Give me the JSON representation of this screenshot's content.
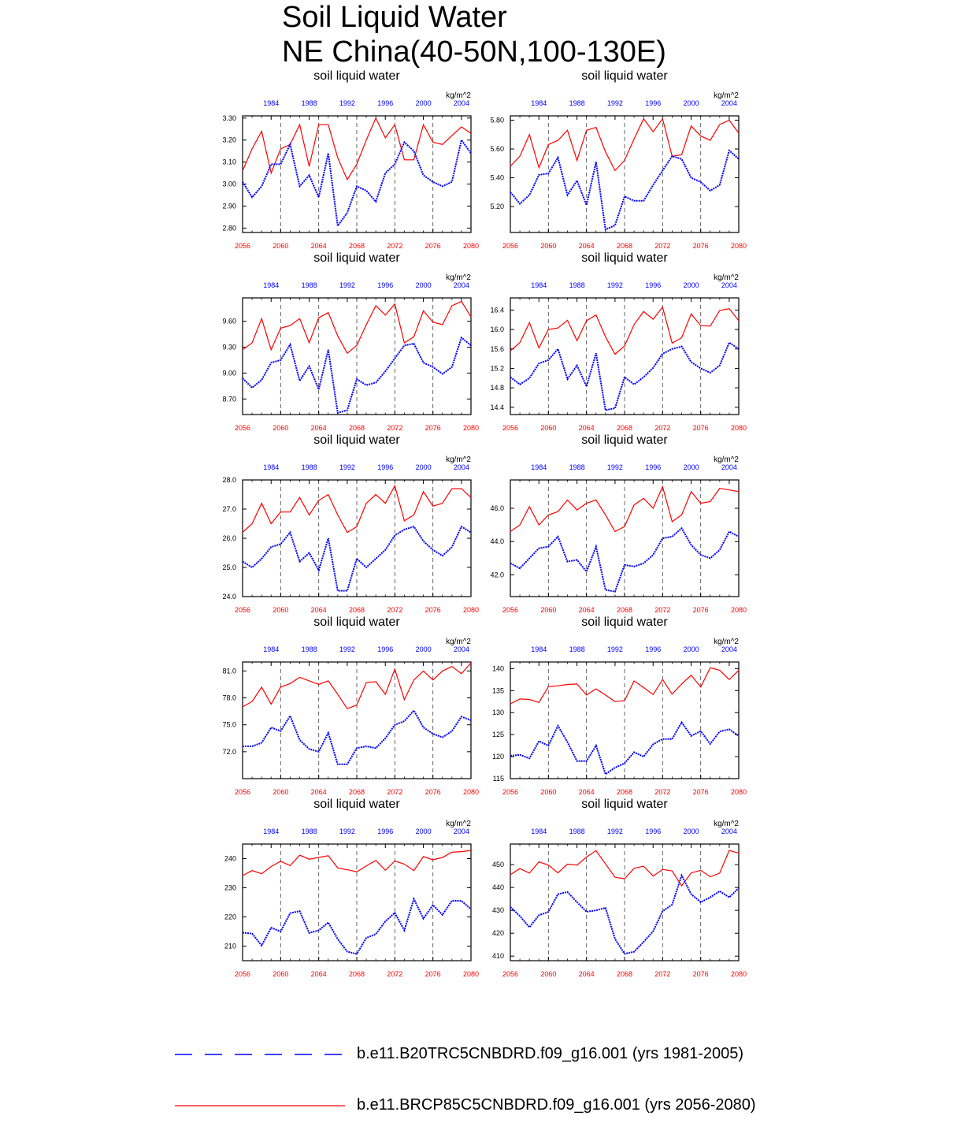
{
  "title_line1": "Soil Liquid Water",
  "title_line2": "NE China(40-50N,100-130E)",
  "legend": {
    "hist_label": "b.e11.B20TRC5CNBDRD.f09_g16.001 (yrs 1981-2005)",
    "hist_color": "#0000ff",
    "fut_label": "b.e11.BRCP85C5CNBDRD.f09_g16.001 (yrs 2056-2080)",
    "fut_color": "#ff0000"
  },
  "chart_data": [
    {
      "type": "line",
      "title": "soil liquid water",
      "units": "kg/m^2",
      "ylim": [
        2.78,
        3.31
      ],
      "yticks": [
        "2.80",
        "2.90",
        "3.00",
        "3.10",
        "3.20",
        "3.30"
      ],
      "x_bottom_ticks": [
        "2056",
        "2060",
        "2064",
        "2068",
        "2072",
        "2076",
        "2080"
      ],
      "x_top_ticks": [
        "1984",
        "1988",
        "1992",
        "1996",
        "2000",
        "2004"
      ],
      "series": [
        {
          "name": "b.e11.BRCP85C5CNBDRD.f09_g16.001 (yrs 2056-2080)",
          "x_years": "2056-2080",
          "values": [
            3.06,
            3.16,
            3.24,
            3.05,
            3.16,
            3.18,
            3.27,
            3.08,
            3.27,
            3.27,
            3.12,
            3.02,
            3.09,
            3.2,
            3.3,
            3.21,
            3.27,
            3.11,
            3.11,
            3.27,
            3.19,
            3.18,
            3.22,
            3.26,
            3.23
          ]
        },
        {
          "name": "b.e11.B20TRC5CNBDRD.f09_g16.001 (yrs 1981-2005)",
          "x_years": "1981-2005",
          "values": [
            3.01,
            2.94,
            2.99,
            3.09,
            3.09,
            3.18,
            2.99,
            3.04,
            2.94,
            3.14,
            2.81,
            2.87,
            2.99,
            2.97,
            2.92,
            3.05,
            3.09,
            3.19,
            3.15,
            3.04,
            3.01,
            2.99,
            3.01,
            3.2,
            3.14
          ]
        }
      ]
    },
    {
      "type": "line",
      "title": "soil liquid water",
      "units": "kg/m^2",
      "ylim": [
        5.02,
        5.83
      ],
      "yticks": [
        "5.20",
        "5.40",
        "5.60",
        "5.80"
      ],
      "x_bottom_ticks": [
        "2056",
        "2060",
        "2064",
        "2068",
        "2072",
        "2076",
        "2080"
      ],
      "x_top_ticks": [
        "1984",
        "1988",
        "1992",
        "1996",
        "2000",
        "2004"
      ],
      "series": [
        {
          "name": "b.e11.BRCP85C5CNBDRD.f09_g16.001 (yrs 2056-2080)",
          "x_years": "2056-2080",
          "values": [
            5.48,
            5.55,
            5.7,
            5.47,
            5.63,
            5.66,
            5.73,
            5.52,
            5.73,
            5.75,
            5.58,
            5.45,
            5.52,
            5.67,
            5.81,
            5.72,
            5.81,
            5.55,
            5.56,
            5.76,
            5.69,
            5.66,
            5.77,
            5.8,
            5.71
          ]
        },
        {
          "name": "b.e11.B20TRC5CNBDRD.f09_g16.001 (yrs 1981-2005)",
          "x_years": "1981-2005",
          "values": [
            5.3,
            5.22,
            5.28,
            5.42,
            5.43,
            5.54,
            5.28,
            5.38,
            5.21,
            5.51,
            5.04,
            5.07,
            5.27,
            5.24,
            5.24,
            5.35,
            5.45,
            5.55,
            5.53,
            5.4,
            5.37,
            5.31,
            5.35,
            5.59,
            5.53
          ]
        }
      ]
    },
    {
      "type": "line",
      "title": "soil liquid water",
      "units": "kg/m^2",
      "ylim": [
        8.52,
        9.87
      ],
      "yticks": [
        "8.70",
        "9.00",
        "9.30",
        "9.60"
      ],
      "x_bottom_ticks": [
        "2056",
        "2060",
        "2064",
        "2068",
        "2072",
        "2076",
        "2080"
      ],
      "x_top_ticks": [
        "1984",
        "1988",
        "1992",
        "1996",
        "2000",
        "2004"
      ],
      "series": [
        {
          "name": "b.e11.BRCP85C5CNBDRD.f09_g16.001 (yrs 2056-2080)",
          "x_years": "2056-2080",
          "values": [
            9.27,
            9.35,
            9.63,
            9.27,
            9.52,
            9.55,
            9.63,
            9.35,
            9.64,
            9.7,
            9.43,
            9.23,
            9.32,
            9.56,
            9.78,
            9.67,
            9.8,
            9.35,
            9.42,
            9.72,
            9.59,
            9.56,
            9.78,
            9.83,
            9.65
          ]
        },
        {
          "name": "b.e11.B20TRC5CNBDRD.f09_g16.001 (yrs 1981-2005)",
          "x_years": "1981-2005",
          "values": [
            8.94,
            8.83,
            8.92,
            9.12,
            9.15,
            9.33,
            8.91,
            9.08,
            8.81,
            9.27,
            8.54,
            8.57,
            8.93,
            8.86,
            8.89,
            9.02,
            9.17,
            9.32,
            9.34,
            9.12,
            9.07,
            8.99,
            9.07,
            9.41,
            9.32
          ]
        }
      ]
    },
    {
      "type": "line",
      "title": "soil liquid water",
      "units": "kg/m^2",
      "ylim": [
        14.25,
        16.65
      ],
      "yticks": [
        "14.4",
        "14.8",
        "15.2",
        "15.6",
        "16.0",
        "16.4"
      ],
      "x_bottom_ticks": [
        "2056",
        "2060",
        "2064",
        "2068",
        "2072",
        "2076",
        "2080"
      ],
      "x_top_ticks": [
        "1984",
        "1988",
        "1992",
        "1996",
        "2000",
        "2004"
      ],
      "series": [
        {
          "name": "b.e11.BRCP85C5CNBDRD.f09_g16.001 (yrs 2056-2080)",
          "x_years": "2056-2080",
          "values": [
            15.56,
            15.73,
            16.14,
            15.62,
            16.0,
            16.03,
            16.19,
            15.77,
            16.18,
            16.3,
            15.85,
            15.49,
            15.66,
            16.1,
            16.37,
            16.21,
            16.46,
            15.72,
            15.83,
            16.32,
            16.08,
            16.07,
            16.39,
            16.43,
            16.18
          ]
        },
        {
          "name": "b.e11.B20TRC5CNBDRD.f09_g16.001 (yrs 1981-2005)",
          "x_years": "1981-2005",
          "values": [
            15.02,
            14.87,
            15.0,
            15.3,
            15.37,
            15.6,
            14.98,
            15.26,
            14.83,
            15.51,
            14.34,
            14.38,
            15.02,
            14.87,
            15.02,
            15.21,
            15.5,
            15.6,
            15.65,
            15.33,
            15.2,
            15.11,
            15.26,
            15.73,
            15.6
          ]
        }
      ]
    },
    {
      "type": "line",
      "title": "soil liquid water",
      "units": "kg/m^2",
      "ylim": [
        24.0,
        28.0
      ],
      "yticks": [
        "24.0",
        "25.0",
        "26.0",
        "27.0",
        "28.0"
      ],
      "x_bottom_ticks": [
        "2056",
        "2060",
        "2064",
        "2068",
        "2072",
        "2076",
        "2080"
      ],
      "x_top_ticks": [
        "1984",
        "1988",
        "1992",
        "1996",
        "2000",
        "2004"
      ],
      "series": [
        {
          "name": "b.e11.BRCP85C5CNBDRD.f09_g16.001 (yrs 2056-2080)",
          "x_years": "2056-2080",
          "values": [
            26.2,
            26.5,
            27.2,
            26.5,
            26.9,
            26.9,
            27.4,
            26.8,
            27.3,
            27.5,
            26.8,
            26.2,
            26.4,
            27.2,
            27.5,
            27.2,
            27.8,
            26.6,
            26.8,
            27.6,
            27.1,
            27.2,
            27.7,
            27.7,
            27.4
          ]
        },
        {
          "name": "b.e11.B20TRC5CNBDRD.f09_g16.001 (yrs 1981-2005)",
          "x_years": "1981-2005",
          "values": [
            25.2,
            25.0,
            25.3,
            25.7,
            25.8,
            26.2,
            25.2,
            25.5,
            24.9,
            26.0,
            24.2,
            24.2,
            25.3,
            25.0,
            25.3,
            25.6,
            26.1,
            26.3,
            26.4,
            25.9,
            25.6,
            25.4,
            25.7,
            26.4,
            26.2
          ]
        }
      ]
    },
    {
      "type": "line",
      "title": "soil liquid water",
      "units": "kg/m^2",
      "ylim": [
        40.7,
        47.7
      ],
      "yticks": [
        "42.0",
        "44.0",
        "46.0"
      ],
      "x_bottom_ticks": [
        "2056",
        "2060",
        "2064",
        "2068",
        "2072",
        "2076",
        "2080"
      ],
      "x_top_ticks": [
        "1984",
        "1988",
        "1992",
        "1996",
        "2000",
        "2004"
      ],
      "series": [
        {
          "name": "b.e11.BRCP85C5CNBDRD.f09_g16.001 (yrs 2056-2080)",
          "x_years": "2056-2080",
          "values": [
            44.6,
            45.0,
            46.1,
            45.0,
            45.6,
            45.8,
            46.5,
            45.9,
            46.3,
            46.5,
            45.6,
            44.6,
            44.9,
            46.2,
            46.6,
            46.0,
            47.3,
            45.2,
            45.6,
            47.0,
            46.3,
            46.4,
            47.2,
            47.1,
            47.0
          ]
        },
        {
          "name": "b.e11.B20TRC5CNBDRD.f09_g16.001 (yrs 1981-2005)",
          "x_years": "1981-2005",
          "values": [
            42.7,
            42.4,
            43.0,
            43.6,
            43.7,
            44.3,
            42.8,
            42.9,
            42.2,
            43.7,
            41.1,
            41.0,
            42.6,
            42.5,
            42.7,
            43.2,
            44.2,
            44.3,
            44.8,
            43.8,
            43.2,
            43.0,
            43.5,
            44.6,
            44.3
          ]
        }
      ]
    },
    {
      "type": "line",
      "title": "soil liquid water",
      "units": "kg/m^2",
      "ylim": [
        69.0,
        82.0
      ],
      "yticks": [
        "72.0",
        "75.0",
        "78.0",
        "81.0"
      ],
      "x_bottom_ticks": [
        "2056",
        "2060",
        "2064",
        "2068",
        "2072",
        "2076",
        "2080"
      ],
      "x_top_ticks": [
        "1984",
        "1988",
        "1992",
        "1996",
        "2000",
        "2004"
      ],
      "series": [
        {
          "name": "b.e11.BRCP85C5CNBDRD.f09_g16.001 (yrs 2056-2080)",
          "x_years": "2056-2080",
          "values": [
            77.0,
            77.6,
            79.2,
            77.3,
            79.2,
            79.6,
            80.3,
            79.9,
            79.5,
            79.9,
            78.4,
            76.8,
            77.2,
            79.7,
            79.8,
            78.4,
            81.2,
            77.8,
            80.0,
            81.0,
            80.0,
            81.0,
            81.5,
            80.7,
            81.9
          ]
        },
        {
          "name": "b.e11.B20TRC5CNBDRD.f09_g16.001 (yrs 1981-2005)",
          "x_years": "1981-2005",
          "values": [
            72.6,
            72.6,
            73.0,
            74.7,
            74.3,
            76.0,
            73.3,
            72.3,
            72.0,
            74.1,
            70.6,
            70.6,
            72.4,
            72.6,
            72.4,
            73.5,
            75.0,
            75.4,
            76.6,
            74.7,
            74.0,
            73.6,
            74.3,
            75.9,
            75.5
          ]
        }
      ]
    },
    {
      "type": "line",
      "title": "soil liquid water",
      "units": "kg/m^2",
      "ylim": [
        115,
        141.5
      ],
      "yticks": [
        "115",
        "120",
        "125",
        "130",
        "135",
        "140"
      ],
      "x_bottom_ticks": [
        "2056",
        "2060",
        "2064",
        "2068",
        "2072",
        "2076",
        "2080"
      ],
      "x_top_ticks": [
        "1984",
        "1988",
        "1992",
        "1996",
        "2000",
        "2004"
      ],
      "series": [
        {
          "name": "b.e11.BRCP85C5CNBDRD.f09_g16.001 (yrs 2056-2080)",
          "x_years": "2056-2080",
          "values": [
            132.0,
            133.1,
            133.0,
            132.3,
            135.9,
            136.1,
            136.4,
            136.5,
            134.0,
            135.4,
            134.0,
            132.5,
            132.7,
            137.2,
            135.7,
            134.1,
            137.5,
            134.2,
            136.5,
            138.5,
            135.8,
            140.2,
            139.6,
            137.5,
            139.6
          ]
        },
        {
          "name": "b.e11.B20TRC5CNBDRD.f09_g16.001 (yrs 1981-2005)",
          "x_years": "1981-2005",
          "values": [
            120.2,
            120.4,
            119.6,
            123.5,
            122.5,
            127.0,
            123.3,
            119.0,
            119.0,
            122.5,
            116.0,
            117.5,
            118.5,
            121.0,
            120.0,
            122.8,
            124.0,
            124.0,
            127.8,
            124.7,
            125.8,
            122.9,
            125.7,
            126.2,
            124.7
          ]
        }
      ]
    },
    {
      "type": "line",
      "title": "soil liquid water",
      "units": "kg/m^2",
      "ylim": [
        205,
        245
      ],
      "yticks": [
        "210",
        "220",
        "230",
        "240"
      ],
      "x_bottom_ticks": [
        "2056",
        "2060",
        "2064",
        "2068",
        "2072",
        "2076",
        "2080"
      ],
      "x_top_ticks": [
        "1984",
        "1988",
        "1992",
        "1996",
        "2000",
        "2004"
      ],
      "series": [
        {
          "name": "b.e11.BRCP85C5CNBDRD.f09_g16.001 (yrs 2056-2080)",
          "x_years": "2056-2080",
          "values": [
            234.2,
            235.9,
            234.8,
            237.3,
            239.1,
            237.6,
            241.2,
            239.8,
            240.4,
            241.0,
            236.8,
            236.2,
            235.5,
            237.5,
            239.4,
            236.0,
            239.2,
            238.1,
            235.9,
            240.7,
            239.6,
            240.4,
            242.2,
            242.4,
            242.8
          ]
        },
        {
          "name": "b.e11.B20TRC5CNBDRD.f09_g16.001 (yrs 1981-2005)",
          "x_years": "1981-2005",
          "values": [
            214.6,
            214.3,
            210.2,
            216.3,
            215.0,
            221.3,
            222.0,
            214.5,
            215.4,
            218.1,
            212.4,
            208.1,
            207.3,
            212.8,
            214.1,
            218.5,
            221.4,
            215.4,
            226.2,
            219.4,
            224.1,
            220.7,
            225.6,
            225.5,
            222.7
          ]
        }
      ]
    },
    {
      "type": "line",
      "title": "soil liquid water",
      "units": "kg/m^2",
      "ylim": [
        408,
        459
      ],
      "yticks": [
        "410",
        "420",
        "430",
        "440",
        "450"
      ],
      "x_bottom_ticks": [
        "2056",
        "2060",
        "2064",
        "2068",
        "2072",
        "2076",
        "2080"
      ],
      "x_top_ticks": [
        "1984",
        "1988",
        "1992",
        "1996",
        "2000",
        "2004"
      ],
      "series": [
        {
          "name": "b.e11.BRCP85C5CNBDRD.f09_g16.001 (yrs 2056-2080)",
          "x_years": "2056-2080",
          "values": [
            445.6,
            448.3,
            446.3,
            451.2,
            449.8,
            446.4,
            450.2,
            449.8,
            453.3,
            456.1,
            450.3,
            444.5,
            443.8,
            448.4,
            449.3,
            445.0,
            447.9,
            447.2,
            440.7,
            446.4,
            447.5,
            444.7,
            446.3,
            456.2,
            455.0
          ]
        },
        {
          "name": "b.e11.B20TRC5CNBDRD.f09_g16.001 (yrs 1981-2005)",
          "x_years": "1981-2005",
          "values": [
            431.5,
            427.5,
            422.6,
            427.9,
            429.3,
            437.1,
            438.0,
            433.6,
            429.4,
            430.0,
            431.1,
            417.5,
            411.0,
            411.9,
            416.2,
            420.9,
            429.6,
            432.5,
            445.3,
            437.1,
            433.6,
            435.7,
            438.4,
            435.7,
            439.7
          ]
        }
      ]
    }
  ]
}
